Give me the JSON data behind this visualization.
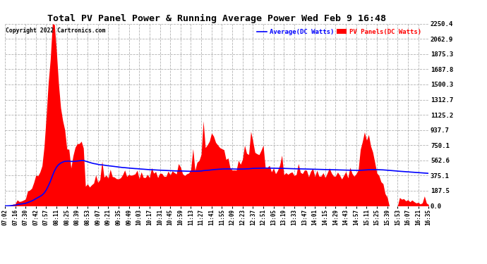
{
  "title": "Total PV Panel Power & Running Average Power Wed Feb 9 16:48",
  "copyright": "Copyright 2022 Cartronics.com",
  "legend_avg": "Average(DC Watts)",
  "legend_pv": "PV Panels(DC Watts)",
  "yticks": [
    0.0,
    187.5,
    375.1,
    562.6,
    750.1,
    937.7,
    1125.2,
    1312.7,
    1500.3,
    1687.8,
    1875.3,
    2062.9,
    2250.4
  ],
  "ymax": 2250.4,
  "ymin": 0.0,
  "background_color": "#ffffff",
  "grid_color": "#aaaaaa",
  "pv_color": "#ff0000",
  "avg_color": "#0000ff",
  "xtick_labels": [
    "07:02",
    "07:16",
    "07:30",
    "07:42",
    "07:57",
    "08:11",
    "08:25",
    "08:39",
    "08:53",
    "09:07",
    "09:21",
    "09:35",
    "09:49",
    "10:03",
    "10:17",
    "10:31",
    "10:45",
    "10:59",
    "11:13",
    "11:27",
    "11:41",
    "11:55",
    "12:09",
    "12:23",
    "12:37",
    "12:51",
    "13:05",
    "13:19",
    "13:33",
    "13:47",
    "14:01",
    "14:15",
    "14:29",
    "14:43",
    "14:57",
    "15:11",
    "15:25",
    "15:39",
    "15:53",
    "16:07",
    "16:21",
    "16:35"
  ]
}
